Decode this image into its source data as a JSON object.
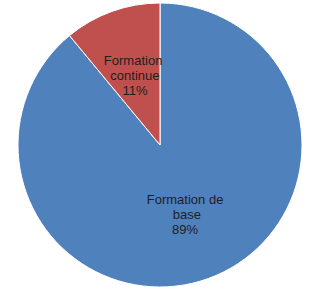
{
  "chart_data": {
    "type": "pie",
    "categories": [
      "Formation de base",
      "Formation continue"
    ],
    "values": [
      89,
      11
    ],
    "value_labels": [
      "89%",
      "11%"
    ],
    "colors": [
      "#4f81bd",
      "#c0504d"
    ],
    "data_labels": true
  }
}
